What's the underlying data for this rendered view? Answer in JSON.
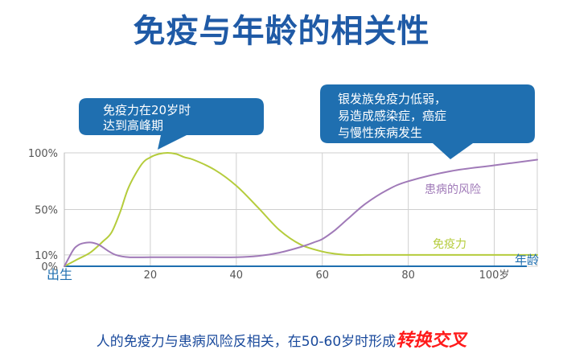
{
  "page": {
    "title": "免疫与年龄的相关性",
    "caption_main": "人的免疫力与患病风险反相关，在50-60岁时形成",
    "caption_emphasis": "转换交叉"
  },
  "callouts": {
    "left": [
      "免疫力在20岁时",
      "达到高峰期"
    ],
    "right": [
      "银发族免疫力低弱，",
      "易造成感染症，癌症",
      "与慢性疾病发生"
    ]
  },
  "colors": {
    "title": "#1f5aa6",
    "callout_fill": "#1f6fb0",
    "immunity": "#b5cc3c",
    "risk": "#a07ab8",
    "axis_label": "#1f6fb0",
    "grid": "#cfcfcf",
    "emphasis": "#ff1a1a"
  },
  "chart_data": {
    "type": "line",
    "xlim": [
      0,
      110
    ],
    "ylim": [
      0,
      100
    ],
    "x_ticks": [
      0,
      20,
      40,
      60,
      80,
      100
    ],
    "x_tick_labels": [
      "出生",
      "20",
      "40",
      "60",
      "80",
      "100岁"
    ],
    "y_ticks": [
      0,
      10,
      50,
      100
    ],
    "y_tick_labels": [
      "0%",
      "10%",
      "50%",
      "100%"
    ],
    "x_axis_end_label": "年龄",
    "grid": true,
    "series": [
      {
        "name": "免疫力",
        "color": "#b5cc3c",
        "x": [
          0,
          3,
          6,
          9,
          11,
          13,
          15,
          18,
          20,
          22,
          24,
          26,
          28,
          30,
          35,
          40,
          45,
          50,
          55,
          60,
          63,
          66,
          70,
          75,
          80,
          90,
          100,
          110
        ],
        "y": [
          0,
          6,
          12,
          22,
          30,
          48,
          70,
          90,
          96,
          99,
          100,
          99,
          96,
          94,
          85,
          71,
          52,
          32,
          19,
          13,
          11,
          10,
          10,
          10,
          10,
          10,
          10,
          10
        ]
      },
      {
        "name": "患病的风险",
        "color": "#a07ab8",
        "x": [
          0,
          2,
          3,
          4,
          6,
          8,
          10,
          12,
          15,
          20,
          30,
          40,
          45,
          50,
          55,
          58,
          60,
          63,
          66,
          70,
          75,
          80,
          90,
          100,
          110
        ],
        "y": [
          0,
          14,
          18,
          20,
          21,
          19,
          14,
          10,
          8,
          8,
          8,
          8,
          9,
          12,
          17,
          21,
          24,
          32,
          42,
          55,
          67,
          75,
          84,
          89,
          94
        ]
      }
    ]
  }
}
